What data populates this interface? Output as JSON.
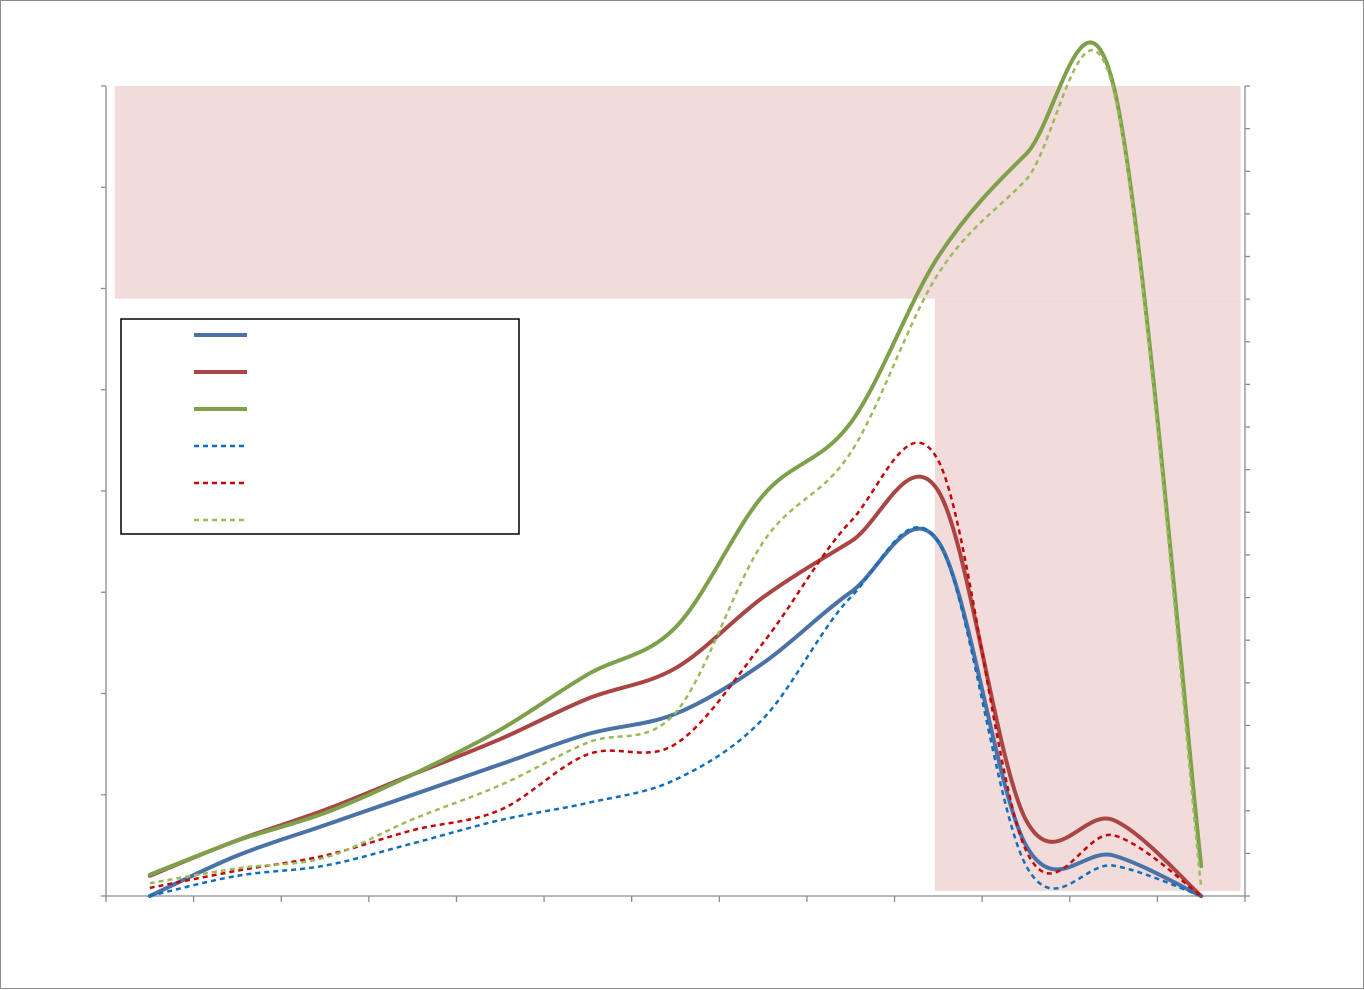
{
  "chart_data": {
    "type": "line",
    "title": "",
    "xlabel": "",
    "ylabel": "",
    "y2label": "",
    "x": [
      1,
      2,
      3,
      4,
      5,
      6,
      7,
      8,
      9,
      10,
      11,
      12,
      13
    ],
    "xlim": [
      0.5,
      13.5
    ],
    "ylim": [
      0,
      8
    ],
    "y2lim": [
      0,
      19
    ],
    "x_ticks": [
      0.5,
      1.5,
      2.5,
      3.5,
      4.5,
      5.5,
      6.5,
      7.5,
      8.5,
      9.5,
      10.5,
      11.5,
      12.5,
      13.5
    ],
    "y_ticks": [
      0,
      1,
      2,
      3,
      4,
      5,
      6,
      7,
      8
    ],
    "y2_ticks": [
      0,
      1,
      2,
      3,
      4,
      5,
      6,
      7,
      8,
      9,
      10,
      11,
      12,
      13,
      14,
      15,
      16,
      17,
      18,
      19
    ],
    "grid": false,
    "legend": {
      "position": "upper-left-inside",
      "border": true
    },
    "shaded_regions": [
      {
        "x": [
          0.6,
          13.45
        ],
        "y": [
          5.9,
          8
        ],
        "color": "#f2dcdb"
      },
      {
        "x": [
          9.96,
          13.45
        ],
        "y": [
          0.05,
          5.9
        ],
        "color": "#f2dcdb"
      }
    ],
    "series": [
      {
        "color": "#4a72a6",
        "style": "solid",
        "width": 4,
        "axis": "y",
        "values": [
          0.0,
          0.4,
          0.7,
          1.0,
          1.3,
          1.6,
          1.8,
          2.3,
          3.0,
          3.5,
          0.5,
          0.4,
          0.0
        ]
      },
      {
        "color": "#a94644",
        "style": "solid",
        "width": 4,
        "axis": "y",
        "values": [
          0.2,
          0.55,
          0.85,
          1.2,
          1.55,
          1.95,
          2.25,
          2.95,
          3.5,
          4.0,
          0.75,
          0.75,
          0.0
        ]
      },
      {
        "color": "#7ea04b",
        "style": "solid",
        "width": 4,
        "axis": "y2",
        "values": [
          0.5,
          1.3,
          1.95,
          2.85,
          3.9,
          5.2,
          6.3,
          9.4,
          11.1,
          15.0,
          17.4,
          19.0,
          0.7
        ]
      },
      {
        "color": "#0f6fba",
        "style": "dashed",
        "width": 2.5,
        "axis": "y",
        "values": [
          0.0,
          0.2,
          0.3,
          0.52,
          0.75,
          0.92,
          1.15,
          1.75,
          2.95,
          3.5,
          0.3,
          0.3,
          0.0
        ]
      },
      {
        "color": "#c4070b",
        "style": "dashed",
        "width": 2.5,
        "axis": "y",
        "values": [
          0.08,
          0.25,
          0.4,
          0.65,
          0.85,
          1.4,
          1.5,
          2.5,
          3.7,
          4.3,
          0.45,
          0.6,
          0.0
        ]
      },
      {
        "color": "#9bbb59",
        "style": "dashed",
        "width": 2.5,
        "axis": "y2",
        "values": [
          0.3,
          0.65,
          0.9,
          1.8,
          2.6,
          3.6,
          4.3,
          8.3,
          10.4,
          14.6,
          16.8,
          18.9,
          0.2
        ]
      }
    ]
  }
}
